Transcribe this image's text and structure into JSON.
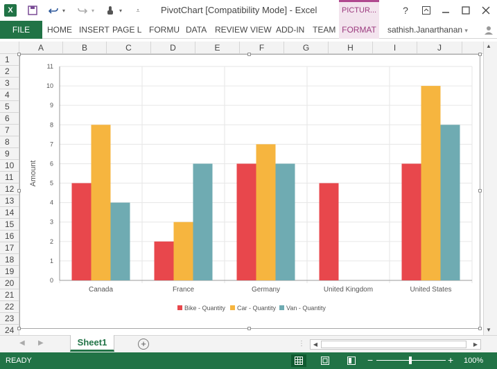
{
  "window": {
    "title": "PivotChart  [Compatibility Mode] - Excel",
    "context_tab": "PICTUR...",
    "controls": [
      "?",
      "restore-ribbon",
      "minimize",
      "maximize",
      "close"
    ]
  },
  "qat": {
    "app_icon_letter": "X",
    "icons": [
      "save-icon",
      "undo-icon",
      "redo-icon",
      "touch-mode-icon",
      "customize-icon"
    ]
  },
  "ribbon": {
    "file": "FILE",
    "tabs": [
      "HOME",
      "INSERT",
      "PAGE L",
      "FORMU",
      "DATA",
      "REVIEW",
      "VIEW",
      "ADD-IN",
      "TEAM",
      "FORMAT"
    ],
    "user": "sathish.Janarthanan"
  },
  "columns": [
    "A",
    "B",
    "C",
    "D",
    "E",
    "F",
    "G",
    "H",
    "I",
    "J"
  ],
  "rows": [
    "1",
    "2",
    "3",
    "4",
    "5",
    "6",
    "7",
    "8",
    "9",
    "10",
    "11",
    "12",
    "13",
    "14",
    "15",
    "16",
    "17",
    "18",
    "19",
    "20",
    "21",
    "22",
    "23",
    "24"
  ],
  "chart_data": {
    "type": "bar",
    "categories": [
      "Canada",
      "France",
      "Germany",
      "United Kingdom",
      "United States"
    ],
    "series": [
      {
        "name": "Bike - Quantity",
        "color": "#e8474c",
        "values": [
          5,
          2,
          6,
          5,
          6
        ]
      },
      {
        "name": "Car - Quantity",
        "color": "#f6b53f",
        "values": [
          8,
          3,
          7,
          0,
          10
        ]
      },
      {
        "name": "Van - Quantity",
        "color": "#6fabb2",
        "values": [
          4,
          6,
          6,
          0,
          8
        ]
      }
    ],
    "ylabel": "Amount",
    "ylim": [
      0,
      11
    ],
    "yticks": [
      0,
      1,
      2,
      3,
      4,
      5,
      6,
      7,
      8,
      9,
      10,
      11
    ],
    "grid": true,
    "legend": "bottom"
  },
  "sheets": {
    "active": "Sheet1",
    "add_label": "+"
  },
  "status": {
    "text": "READY",
    "zoom": "100%",
    "zoom_minus": "−",
    "zoom_plus": "+"
  }
}
